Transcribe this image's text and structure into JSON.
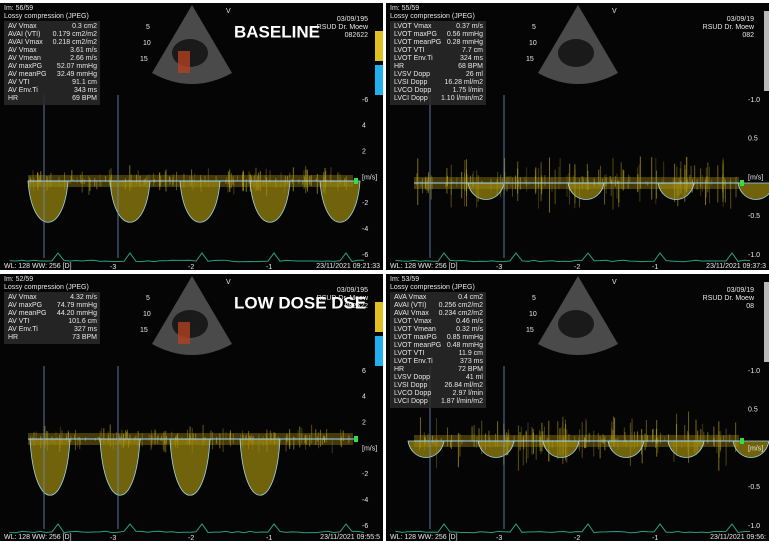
{
  "panels": [
    {
      "title": "BASELINE",
      "frame": "Im: 56/59",
      "compression": "Lossy compression (JPEG)",
      "header": [
        "03/09/195",
        "RSUD Dr. Moew",
        "082622"
      ],
      "probe_mark": "V",
      "depth_labels": [
        "5",
        "10",
        "15"
      ],
      "measurements": [
        [
          "AV Vmax",
          "0.3 cm2"
        ],
        [
          "AVAI (VTI)",
          "0.179 cm2/m2"
        ],
        [
          "AVAI Vmax",
          "0.218 cm2/m2"
        ],
        [
          "AV Vmax",
          "3.61 m/s"
        ],
        [
          "AV Vmean",
          "2.66 m/s"
        ],
        [
          "AV maxPG",
          "52.07 mmHg"
        ],
        [
          "AV meanPG",
          "32.49 mmHg"
        ],
        [
          "AV VTI",
          "91.1 cm"
        ],
        [
          "AV Env.Ti",
          "343 ms"
        ],
        [
          "HR",
          "69 BPM"
        ]
      ],
      "scale_labels": [
        "-6",
        "4",
        "2",
        "[m/s]",
        "-2",
        "-4",
        "-6"
      ],
      "time_labels": [
        "-3",
        "-2",
        "-1"
      ],
      "window": "WL: 128 WW: 256 [D]",
      "timestamp": "23/11/2021 09:21:33"
    },
    {
      "frame": "Im: 55/59",
      "compression": "Lossy compression (JPEG)",
      "header": [
        "03/09/19",
        "RSUD Dr. Moew",
        "082"
      ],
      "probe_mark": "V",
      "depth_labels": [
        "5",
        "10",
        "15"
      ],
      "measurements": [
        [
          "LVOT Vmax",
          "0.37 m/s"
        ],
        [
          "LVOT maxPG",
          "0.56 mmHg"
        ],
        [
          "LVOT meanPG",
          "0.28 mmHg"
        ],
        [
          "LVOT VTI",
          "7.7 cm"
        ],
        [
          "LVOT Env.Ti",
          "324 ms"
        ],
        [
          "HR",
          "68 BPM"
        ],
        [
          "LVSV Dopp",
          "26 ml"
        ],
        [
          "LVSI Dopp",
          "16.28 ml/m2"
        ],
        [
          "LVCO Dopp",
          "1.75 l/min"
        ],
        [
          "LVCI Dopp",
          "1.10 l/min/m2"
        ]
      ],
      "scale_labels": [
        "-1.0",
        "0.5",
        "[m/s]",
        "-0.5",
        "-1.0"
      ],
      "time_labels": [
        "-3",
        "-2",
        "-1"
      ],
      "window": "WL: 128 WW: 256 [D]",
      "timestamp": "23/11/2021 09:37:3"
    },
    {
      "title": "LOW DOSE DSE",
      "frame": "Im: 52/59",
      "compression": "Lossy compression (JPEG)",
      "header": [
        "03/09/195",
        "RSUD Dr. Moew",
        "082622"
      ],
      "probe_mark": "V",
      "depth_labels": [
        "5",
        "10",
        "15"
      ],
      "measurements": [
        [
          "AV Vmax",
          "4.32 m/s"
        ],
        [
          "AV maxPG",
          "74.79 mmHg"
        ],
        [
          "AV meanPG",
          "44.20 mmHg"
        ],
        [
          "AV VTI",
          "101.6 cm"
        ],
        [
          "AV Env.Ti",
          "327 ms"
        ],
        [
          "HR",
          "73 BPM"
        ]
      ],
      "scale_labels": [
        "6",
        "4",
        "2",
        "[m/s]",
        "-2",
        "-4",
        "-6"
      ],
      "time_labels": [
        "-3",
        "-2",
        "-1"
      ],
      "window": "WL: 128 WW: 256 [D]",
      "timestamp": "23/11/2021 09:55:5"
    },
    {
      "frame": "Im: 53/59",
      "compression": "Lossy compression (JPEG)",
      "header": [
        "03/09/19",
        "RSUD Dr. Moew",
        "08"
      ],
      "probe_mark": "V",
      "depth_labels": [
        "5",
        "10",
        "15"
      ],
      "measurements": [
        [
          "AVA Vmax",
          "0.4 cm2"
        ],
        [
          "AVAI (VTI)",
          "0.256 cm2/m2"
        ],
        [
          "AVAI Vmax",
          "0.234 cm2/m2"
        ],
        [
          "LVOT Vmax",
          "0.46 m/s"
        ],
        [
          "LVOT Vmean",
          "0.32 m/s"
        ],
        [
          "LVOT maxPG",
          "0.85 mmHg"
        ],
        [
          "LVOT meanPG",
          "0.48 mmHg"
        ],
        [
          "LVOT VTI",
          "11.9 cm"
        ],
        [
          "LVOT Env.Ti",
          "373 ms"
        ],
        [
          "HR",
          "72 BPM"
        ],
        [
          "LVSV Dopp",
          "41 ml"
        ],
        [
          "LVSI Dopp",
          "26.84 ml/m2"
        ],
        [
          "LVCO Dopp",
          "2.97 l/min"
        ],
        [
          "LVCI Dopp",
          "1.87 l/min/m2"
        ]
      ],
      "scale_labels": [
        "-1.0",
        "0.5",
        "[m/s]",
        "-0.5",
        "-1.0"
      ],
      "time_labels": [
        "-3",
        "-2",
        "-1"
      ],
      "window": "WL: 128 WW: 256 [D]",
      "timestamp": "23/11/2021 09:56:"
    }
  ]
}
